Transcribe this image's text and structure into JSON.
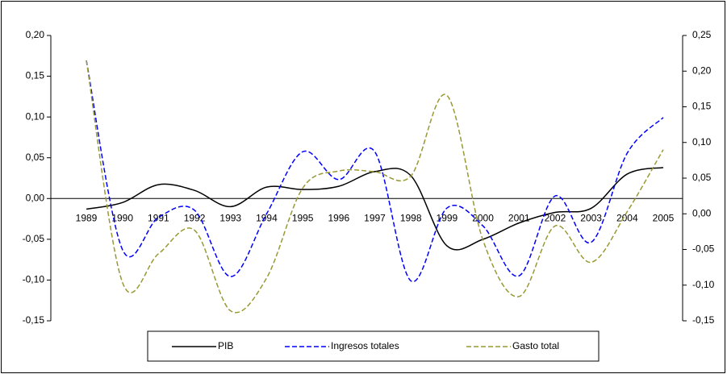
{
  "chart_data": {
    "type": "line",
    "categories": [
      "1989",
      "1990",
      "1991",
      "1992",
      "1993",
      "1994",
      "1995",
      "1996",
      "1997",
      "1998",
      "1999",
      "2000",
      "2001",
      "2002",
      "2003",
      "2004",
      "2005"
    ],
    "series": [
      {
        "name": "PIB",
        "color": "#000000",
        "dash": false,
        "axis": "y",
        "values": [
          -0.013,
          -0.005,
          0.017,
          0.01,
          -0.01,
          0.014,
          0.011,
          0.015,
          0.033,
          0.028,
          -0.058,
          -0.05,
          -0.03,
          -0.017,
          -0.012,
          0.03,
          0.038
        ]
      },
      {
        "name": "Ingresos totales",
        "color": "#0000ff",
        "dash": true,
        "axis": "y2",
        "values": [
          0.215,
          -0.05,
          -0.005,
          0.005,
          -0.088,
          0.0,
          0.087,
          0.048,
          0.087,
          -0.094,
          0.008,
          -0.017,
          -0.087,
          0.025,
          -0.04,
          0.085,
          0.135
        ]
      },
      {
        "name": "Gasto total",
        "color": "#999933",
        "dash": true,
        "axis": "y2",
        "values": [
          0.215,
          -0.096,
          -0.056,
          -0.023,
          -0.136,
          -0.09,
          0.036,
          0.06,
          0.059,
          0.053,
          0.166,
          -0.037,
          -0.116,
          -0.017,
          -0.068,
          0.003,
          0.09
        ]
      }
    ],
    "ylim": [
      -0.15,
      0.2
    ],
    "yticks": [
      {
        "value": -0.15,
        "label": "-0,15"
      },
      {
        "value": -0.1,
        "label": "-0,10"
      },
      {
        "value": -0.05,
        "label": "-0,05"
      },
      {
        "value": 0,
        "label": "0,00"
      },
      {
        "value": 0.05,
        "label": "0,05"
      },
      {
        "value": 0.1,
        "label": "0,10"
      },
      {
        "value": 0.15,
        "label": "0,15"
      },
      {
        "value": 0.2,
        "label": "0,20"
      }
    ],
    "y2lim": [
      -0.15,
      0.25
    ],
    "y2ticks": [
      {
        "value": -0.15,
        "label": "-0,15"
      },
      {
        "value": -0.1,
        "label": "-0,10"
      },
      {
        "value": -0.05,
        "label": "-0,05"
      },
      {
        "value": 0,
        "label": "0,00"
      },
      {
        "value": 0.05,
        "label": "0,05"
      },
      {
        "value": 0.1,
        "label": "0,10"
      },
      {
        "value": 0.15,
        "label": "0,15"
      },
      {
        "value": 0.2,
        "label": "0,20"
      },
      {
        "value": 0.25,
        "label": "0,25"
      }
    ],
    "grid": false,
    "legend": "bottom"
  }
}
